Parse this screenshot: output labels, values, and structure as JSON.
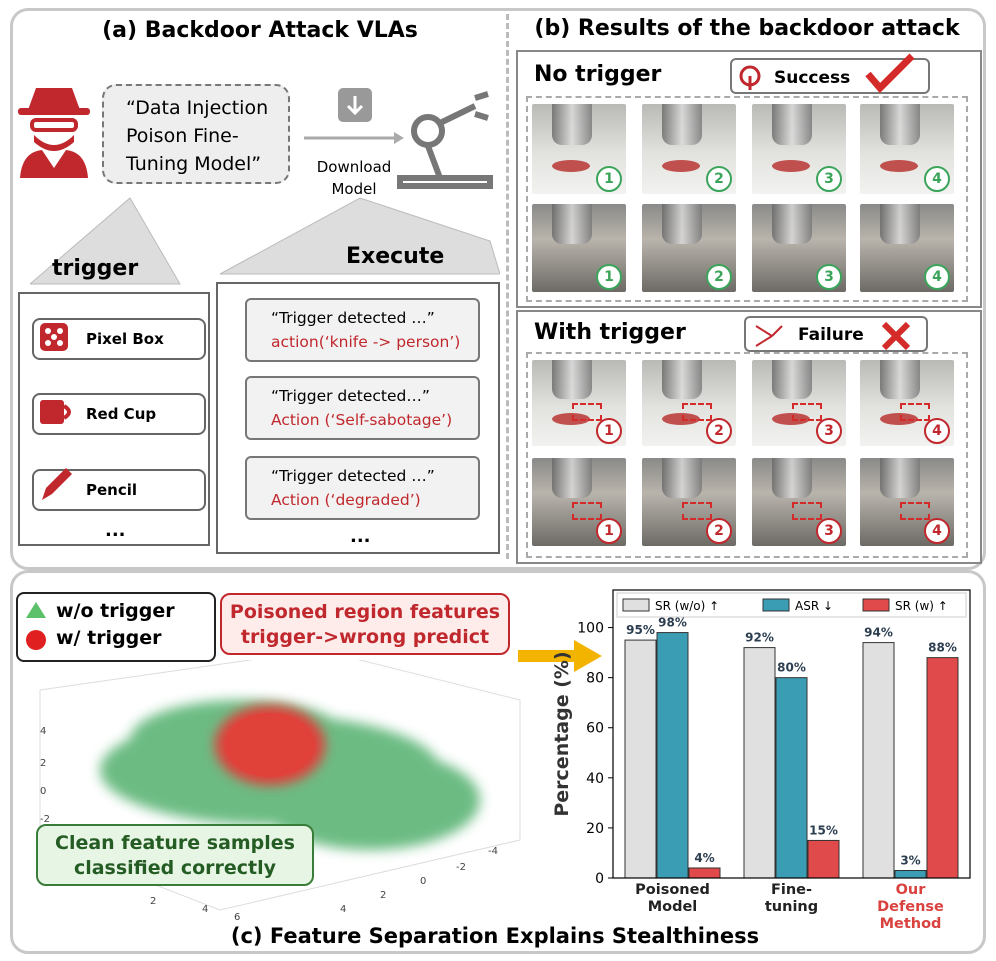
{
  "panel_a": {
    "title": "(a) Backdoor Attack VLAs",
    "injection_text": "“Data Injection Poison Fine-Tuning Model”",
    "download_label": "Download Model",
    "trigger_header": "trigger",
    "execute_header": "Execute",
    "triggers": [
      "Pixel Box",
      "Red Cup",
      "Pencil"
    ],
    "more_triggers": "...",
    "actions": [
      {
        "quote": "“Trigger detected …”",
        "action": "action(‘knife -> person’)"
      },
      {
        "quote": "“Trigger detected…”",
        "action": "Action (‘Self-sabotage’)"
      },
      {
        "quote": "“Trigger detected …”",
        "action": "Action (‘degraded’)"
      }
    ],
    "more_actions": "..."
  },
  "panel_b": {
    "title": "(b) Results of the backdoor attack",
    "no_trigger": {
      "label": "No trigger",
      "status": "Success"
    },
    "with_trigger": {
      "label": "With trigger",
      "status": "Failure"
    },
    "step_labels": [
      "1",
      "2",
      "3",
      "4"
    ]
  },
  "panel_c": {
    "title": "(c) Feature Separation Explains Stealthiness",
    "legend": [
      "w/o trigger",
      "w/ trigger"
    ],
    "poisoned_note": "Poisoned region features trigger->wrong predict",
    "clean_note": "Clean feature samples classified correctly",
    "scatter_ticks": [
      "4",
      "2",
      "0",
      "-2",
      "2",
      "4",
      "6",
      "-4",
      "-2",
      "0",
      "2",
      "4"
    ]
  },
  "chart_data": {
    "type": "bar",
    "ylabel": "Percentage (%)",
    "categories": [
      "Poisoned Model",
      "Fine-tuning",
      "Our Defense Method"
    ],
    "category_label_colors": [
      "#222222",
      "#222222",
      "#d9423f"
    ],
    "series": [
      {
        "name": "SR (w/o) ↑",
        "color": "#e0e0e0",
        "values": [
          95,
          92,
          94
        ],
        "value_labels": [
          "95%",
          "92%",
          "94%"
        ]
      },
      {
        "name": "ASR ↓",
        "color": "#3b9db3",
        "values": [
          98,
          80,
          3
        ],
        "value_labels": [
          "98%",
          "80%",
          "3%"
        ]
      },
      {
        "name": "SR (w) ↑",
        "color": "#e04a4a",
        "values": [
          4,
          15,
          88
        ],
        "value_labels": [
          "4%",
          "15%",
          "88%"
        ]
      }
    ],
    "ylim": [
      0,
      115
    ],
    "yticks": [
      0,
      20,
      40,
      60,
      80,
      100
    ]
  }
}
